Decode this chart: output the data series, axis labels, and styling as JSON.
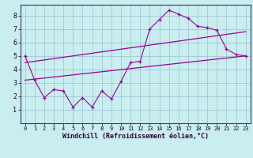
{
  "xlabel": "Windchill (Refroidissement éolien,°C)",
  "bg_color": "#c8eef0",
  "grid_color": "#9bbfcc",
  "line_color": "#990099",
  "xlim": [
    -0.5,
    23.5
  ],
  "ylim": [
    0,
    8.8
  ],
  "xticks": [
    0,
    1,
    2,
    3,
    4,
    5,
    6,
    7,
    8,
    9,
    10,
    11,
    12,
    13,
    14,
    15,
    16,
    17,
    18,
    19,
    20,
    21,
    22,
    23
  ],
  "yticks": [
    1,
    2,
    3,
    4,
    5,
    6,
    7,
    8
  ],
  "line1_x": [
    0,
    1,
    2,
    3,
    4,
    5,
    6,
    7,
    8,
    9,
    10,
    11,
    12,
    13,
    14,
    15,
    16,
    17,
    18,
    19,
    20,
    21,
    22,
    23
  ],
  "line1_y": [
    5.0,
    3.2,
    1.9,
    2.5,
    2.4,
    1.2,
    1.9,
    1.2,
    2.4,
    1.8,
    3.1,
    4.5,
    4.6,
    7.0,
    7.7,
    8.4,
    8.1,
    7.8,
    7.2,
    7.1,
    6.9,
    5.5,
    5.1,
    5.0
  ],
  "line2_x": [
    0,
    23
  ],
  "line2_y": [
    3.2,
    5.0
  ],
  "line3_x": [
    0,
    23
  ],
  "line3_y": [
    4.5,
    6.8
  ],
  "xlabel_color": "#330033",
  "xlabel_fontsize": 6,
  "tick_fontsize_x": 5,
  "tick_fontsize_y": 6
}
